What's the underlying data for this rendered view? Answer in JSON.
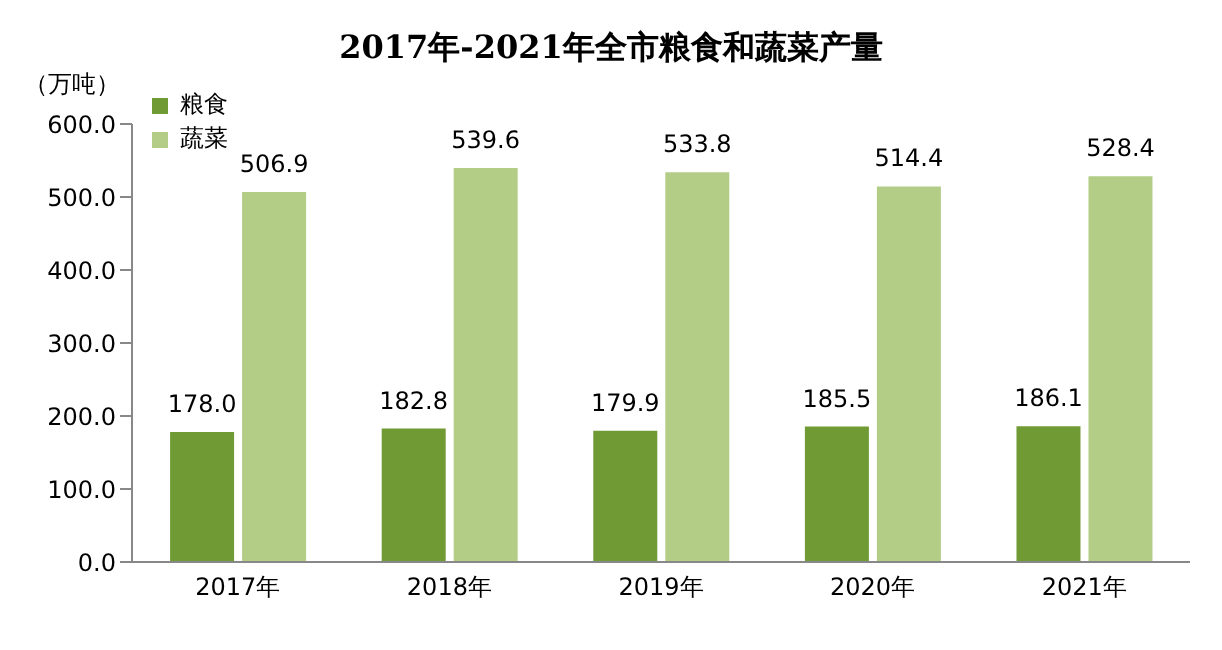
{
  "chart_data": {
    "type": "bar",
    "title": "2017年-2021年全市粮食和蔬菜产量",
    "ylabel": "（万吨）",
    "categories": [
      "2017年",
      "2018年",
      "2019年",
      "2020年",
      "2021年"
    ],
    "series": [
      {
        "name": "粮食",
        "color": "#6f9a34",
        "values": [
          178.0,
          182.8,
          179.9,
          185.5,
          186.1
        ],
        "value_labels": [
          "178.0",
          "182.8",
          "179.9",
          "185.5",
          "186.1"
        ]
      },
      {
        "name": "蔬菜",
        "color": "#b3cd87",
        "values": [
          506.9,
          539.6,
          533.8,
          514.4,
          528.4
        ],
        "value_labels": [
          "506.9",
          "539.6",
          "533.8",
          "514.4",
          "528.4"
        ]
      }
    ],
    "ylim": [
      0,
      600
    ],
    "yticks": [
      {
        "value": 0,
        "label": "0.0"
      },
      {
        "value": 100,
        "label": "100.0"
      },
      {
        "value": 200,
        "label": "200.0"
      },
      {
        "value": 300,
        "label": "300.0"
      },
      {
        "value": 400,
        "label": "400.0"
      },
      {
        "value": 500,
        "label": "500.0"
      },
      {
        "value": 600,
        "label": "600.0"
      }
    ],
    "grid": false,
    "legend": "top left"
  }
}
